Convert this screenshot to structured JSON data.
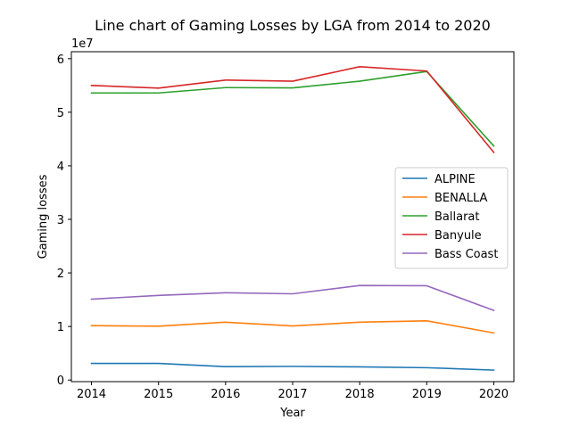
{
  "chart_data": {
    "type": "line",
    "title": "Line chart of Gaming Losses by LGA from 2014 to 2020",
    "xlabel": "Year",
    "ylabel": "Gaming losses",
    "y_multiplier_label": "1e7",
    "x": [
      2014,
      2015,
      2016,
      2017,
      2018,
      2019,
      2020
    ],
    "xlim": [
      2013.7,
      2020.3
    ],
    "ylim": [
      -300000,
      61300000
    ],
    "y_tick_values": [
      0,
      10000000,
      20000000,
      30000000,
      40000000,
      50000000,
      60000000
    ],
    "y_tick_labels": [
      "0",
      "1",
      "2",
      "3",
      "4",
      "5",
      "6"
    ],
    "x_tick_labels": [
      "2014",
      "2015",
      "2016",
      "2017",
      "2018",
      "2019",
      "2020"
    ],
    "grid": false,
    "legend_position": "center-right",
    "series": [
      {
        "name": "ALPINE",
        "color": "#1f77b4",
        "values": [
          3100000,
          3100000,
          2500000,
          2550000,
          2450000,
          2300000,
          1850000
        ]
      },
      {
        "name": "BENALLA",
        "color": "#ff7f0e",
        "values": [
          10150000,
          10050000,
          10800000,
          10100000,
          10800000,
          11050000,
          8800000
        ]
      },
      {
        "name": "Ballarat",
        "color": "#2ca02c",
        "values": [
          53600000,
          53600000,
          54600000,
          54550000,
          55800000,
          57600000,
          43700000
        ]
      },
      {
        "name": "Banyule",
        "color": "#d62728",
        "values": [
          55000000,
          54500000,
          56000000,
          55800000,
          58500000,
          57700000,
          42500000
        ]
      },
      {
        "name": "Bass Coast",
        "color": "#9467bd",
        "values": [
          15100000,
          15800000,
          16300000,
          16100000,
          17650000,
          17600000,
          13000000
        ]
      }
    ]
  }
}
